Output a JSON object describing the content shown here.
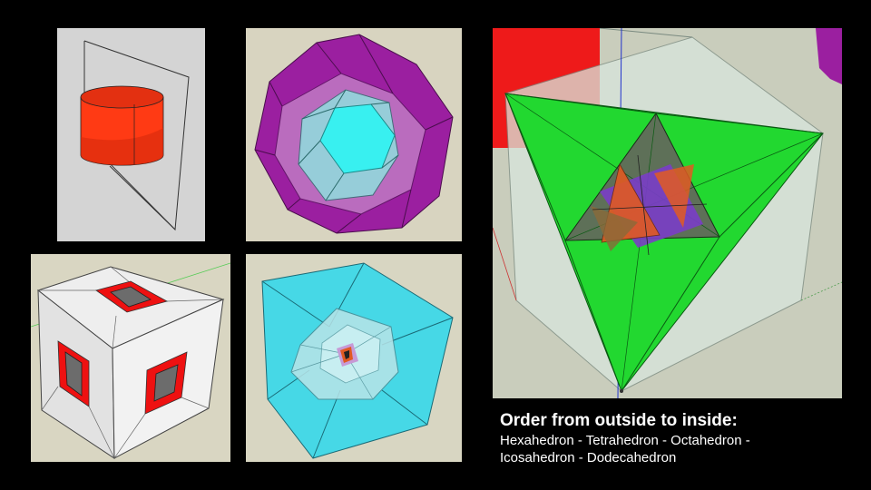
{
  "caption": {
    "title": "Order from outside to inside:",
    "line1": "Hexahedron - Tetrahedron - Octahedron -",
    "line2": "Icosahedron - Dodecahedron"
  },
  "colors": {
    "background": "#000000",
    "cylinder": "#ff3a14",
    "dodecahedron": "#9b1fa0",
    "icosahedron": "#3fe6e6",
    "tetrahedron": "#22d830",
    "cube_face": "#eeeeee",
    "cube_window": "#ee1111",
    "hexahedron_cyan": "#46d8e6"
  }
}
